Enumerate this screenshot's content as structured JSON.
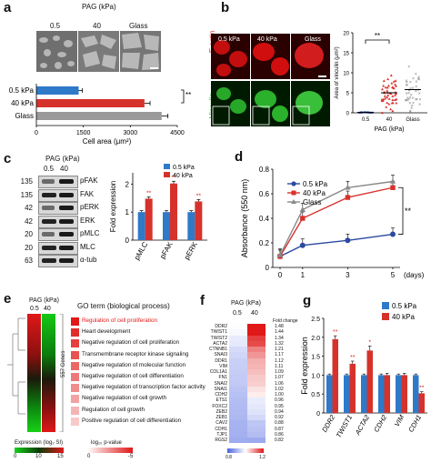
{
  "panels": {
    "a": {
      "letter": "a",
      "header": "PAG (kPa)",
      "image_labels": [
        "0.5",
        "40",
        "Glass"
      ],
      "chart": {
        "type": "bar",
        "orientation": "horizontal",
        "categories": [
          "0.5 kPa",
          "40 kPa",
          "Glass"
        ],
        "values": [
          1350,
          3450,
          4000
        ],
        "errors": [
          120,
          180,
          200
        ],
        "xlabel": "Cell area (μm²)",
        "xticks": [
          "0",
          "1500",
          "3000",
          "4500"
        ],
        "xlim": [
          0,
          4500
        ],
        "significance": "**",
        "colors": [
          "#2f79c9",
          "#d6322c",
          "#9a9a9a"
        ]
      }
    },
    "b": {
      "letter": "b",
      "image_labels": [
        "0.5 kPa",
        "40 kPa",
        "Glass"
      ],
      "row_labels": [
        "F-actin",
        "Vinculin"
      ],
      "chart": {
        "type": "scatter",
        "ylabel": "Area of vinculin (μm²)",
        "yticks": [
          "0",
          "5",
          "10",
          "15",
          "20"
        ],
        "ylim": [
          0,
          20
        ],
        "xticks": [
          "0.5",
          "40",
          "Glass"
        ],
        "xlabel": "PAG (kPa)",
        "means": [
          0.1,
          5,
          5.8
        ],
        "significance": "**"
      }
    },
    "c": {
      "letter": "c",
      "header": "PAG (kPa)",
      "lanes": [
        "0.5",
        "40"
      ],
      "blots": [
        {
          "mw": "135",
          "name": "pFAK"
        },
        {
          "mw": "135",
          "name": "FAK"
        },
        {
          "mw": "42",
          "name": "pERK"
        },
        {
          "mw": "42",
          "name": "ERK"
        },
        {
          "mw": "20",
          "name": "pMLC"
        },
        {
          "mw": "20",
          "name": "MLC"
        },
        {
          "mw": "63",
          "name": "α-tub"
        }
      ],
      "chart": {
        "type": "bar",
        "categories": [
          "pMLC",
          "pFAK",
          "pERK"
        ],
        "series": [
          {
            "name": "0.5 kPa",
            "values": [
              1,
              1,
              1
            ],
            "errors": [
              0.05,
              0.05,
              0.05
            ],
            "color": "#2f79c9"
          },
          {
            "name": "40 kPa",
            "values": [
              1.48,
              2.02,
              1.38
            ],
            "errors": [
              0.06,
              0.08,
              0.07
            ],
            "color": "#d6322c"
          }
        ],
        "ylabel": "Fold expression",
        "yticks": [
          "0",
          "1",
          "2"
        ],
        "ylim": [
          0,
          2.4
        ],
        "significance": [
          "**",
          "**",
          "**"
        ]
      }
    },
    "d": {
      "letter": "d",
      "chart": {
        "type": "line",
        "x": [
          0,
          1,
          3,
          5
        ],
        "xticks": [
          "0",
          "1",
          "3",
          "5"
        ],
        "xunit": "(days)",
        "ylabel": "Absorbance (550 nm)",
        "yticks": [
          "0",
          "0.2",
          "0.4",
          "0.6",
          "0.8"
        ],
        "ylim": [
          0,
          0.8
        ],
        "series": [
          {
            "name": "0.5 kPa",
            "values": [
              0.09,
              0.18,
              0.22,
              0.27
            ],
            "color": "#2b4aa0"
          },
          {
            "name": "40 kPa",
            "values": [
              0.09,
              0.4,
              0.57,
              0.65
            ],
            "color": "#d6322c"
          },
          {
            "name": "Glass",
            "values": [
              0.1,
              0.47,
              0.65,
              0.7
            ],
            "color": "#8a8a8a"
          }
        ],
        "significance": "**"
      }
    },
    "e": {
      "letter": "e",
      "header": "PAG (kPa)",
      "lanes": [
        "0.5",
        "40"
      ],
      "genes_label": "557 Genes",
      "go_title": "GO term (biological process)",
      "go_terms": [
        "Regulation of cell proliferation",
        "Heart development",
        "Negative regulation of cell proliferation",
        "Transmembrane receptor kinase signaling",
        "Negative regulation of molecular function",
        "Negative regulation of cell differentiation",
        "Negative regulation of transcription factor activity",
        "Negative regulation of cell growth",
        "Regulation of cell growth",
        "Positive regulation of cell differentiation"
      ],
      "expression_legend": {
        "label": "Expression (log₂ SI)",
        "ticks": [
          "0",
          "10",
          "15"
        ]
      },
      "pvalue_legend": {
        "label": "log₁₀ p-value",
        "ticks": [
          "0",
          "-5"
        ]
      }
    },
    "f": {
      "letter": "f",
      "header": "PAG (kPa)",
      "lanes": [
        "0.5",
        "40"
      ],
      "fold_header": "Fold change",
      "genes": [
        {
          "name": "DDR2",
          "fold": "1.48"
        },
        {
          "name": "TWIST1",
          "fold": "1.44"
        },
        {
          "name": "TWIST2",
          "fold": "1.34"
        },
        {
          "name": "ACTA2",
          "fold": "1.32"
        },
        {
          "name": "CTNNB1",
          "fold": "1.21"
        },
        {
          "name": "SNAI3",
          "fold": "1.17"
        },
        {
          "name": "DDR1",
          "fold": "1.12"
        },
        {
          "name": "VIM",
          "fold": "1.11"
        },
        {
          "name": "COL1A1",
          "fold": "1.09"
        },
        {
          "name": "FN1",
          "fold": "1.07"
        },
        {
          "name": "SNAI2",
          "fold": "1.06"
        },
        {
          "name": "SNAI1",
          "fold": "1.02"
        },
        {
          "name": "CDH2",
          "fold": "1.00"
        },
        {
          "name": "ETS1",
          "fold": "0.96"
        },
        {
          "name": "FOXC2",
          "fold": "0.95"
        },
        {
          "name": "ZEB2",
          "fold": "0.94"
        },
        {
          "name": "ZEB1",
          "fold": "0.92"
        },
        {
          "name": "CAV2",
          "fold": "0.88"
        },
        {
          "name": "CDH1",
          "fold": "0.87"
        },
        {
          "name": "TJP1",
          "fold": "0.86"
        },
        {
          "name": "RGS2",
          "fold": "0.82"
        }
      ],
      "scale_ticks": [
        "0.8",
        "1.2"
      ]
    },
    "g": {
      "letter": "g",
      "chart": {
        "type": "bar",
        "categories": [
          "DDR2",
          "TWIST1",
          "ACTA2",
          "CDH2",
          "VIM",
          "CDH1"
        ],
        "series": [
          {
            "name": "0.5 kPa",
            "values": [
              1,
              1,
              1,
              1,
              1,
              1
            ],
            "errors": [
              0.03,
              0.03,
              0.03,
              0.03,
              0.03,
              0.03
            ],
            "color": "#2f79c9"
          },
          {
            "name": "40 kPa",
            "values": [
              1.95,
              1.3,
              1.65,
              1.0,
              1.0,
              0.52
            ],
            "errors": [
              0.09,
              0.07,
              0.12,
              0.05,
              0.05,
              0.04
            ],
            "color": "#d6322c"
          }
        ],
        "ylabel": "Fold expression",
        "yticks": [
          "0",
          "0.5",
          "1.0",
          "1.5",
          "2.0",
          "2.5"
        ],
        "ylim": [
          0,
          2.5
        ],
        "significance": [
          "**",
          "**",
          "*",
          "",
          "",
          "**"
        ]
      }
    }
  }
}
